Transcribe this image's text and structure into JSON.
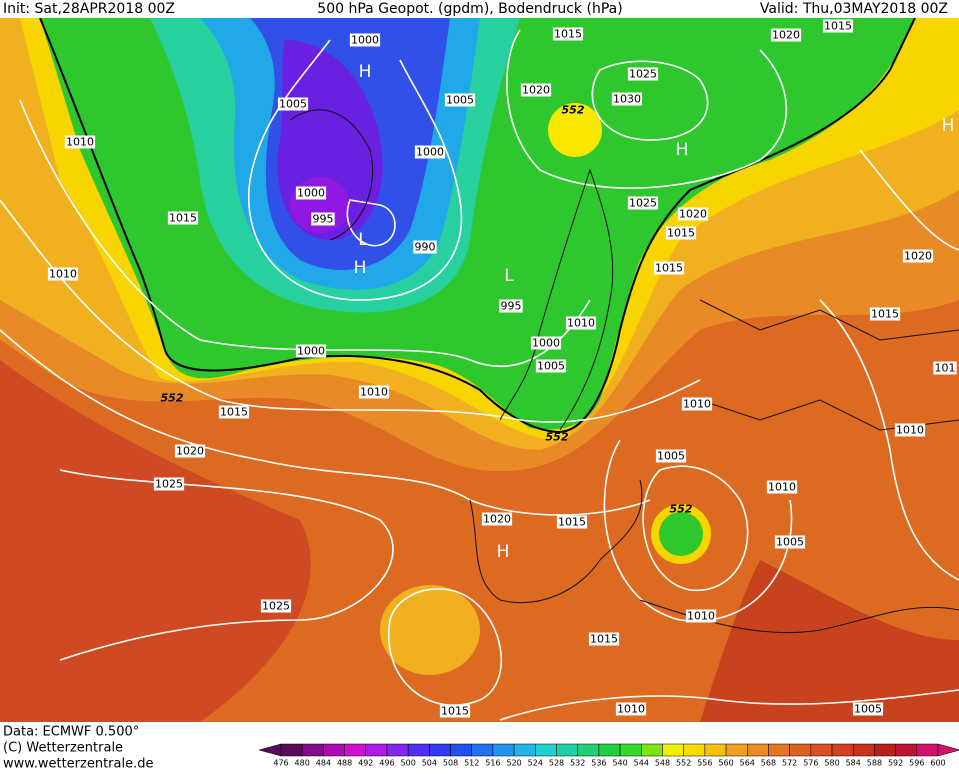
{
  "header": {
    "init": "Init: Sat,28APR2018 00Z",
    "title": "500 hPa Geopot. (gpdm), Bodendruck (hPa)",
    "valid": "Valid: Thu,03MAY2018 00Z"
  },
  "map": {
    "labels": [
      "1000",
      "1015",
      "1020",
      "1015",
      "H",
      "1025",
      "1020",
      "552",
      "1005",
      "1030",
      "H",
      "1005",
      "1010",
      "1000",
      "H",
      "1000",
      "1025",
      "1020",
      "1015",
      "995",
      "L",
      "H",
      "990",
      "1015",
      "1020",
      "1010",
      "1015",
      "L",
      "995",
      "1015",
      "1010",
      "1000",
      "1000",
      "1005",
      "101",
      "1010",
      "552",
      "1010",
      "1015",
      "552",
      "1010",
      "1020",
      "1005",
      "1025",
      "1010",
      "552",
      "1020",
      "1015",
      "H",
      "1005",
      "1025",
      "1010",
      "1015",
      "1015",
      "1010",
      "1005"
    ]
  },
  "footer": {
    "data": "Data: ECMWF  0.500°",
    "copyright": "(C) Wetterzentrale",
    "url": "www.wetterzentrale.de"
  },
  "legend": {
    "ticks": [
      476,
      480,
      484,
      488,
      492,
      496,
      500,
      504,
      508,
      512,
      516,
      520,
      524,
      528,
      532,
      536,
      540,
      544,
      548,
      552,
      556,
      560,
      564,
      568,
      572,
      576,
      580,
      584,
      588,
      592,
      596,
      600
    ]
  }
}
